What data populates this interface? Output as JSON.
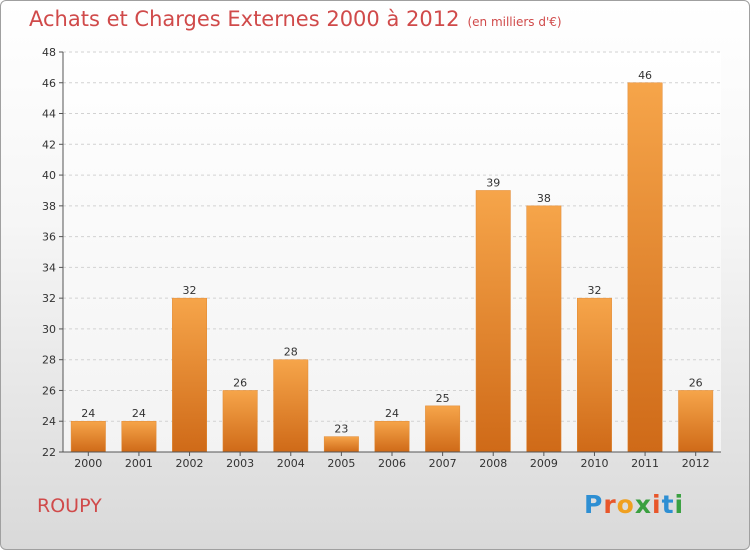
{
  "header": {
    "title": "Achats et Charges Externes 2000 à 2012",
    "unit": "(en milliers d'€)"
  },
  "footer": {
    "town": "ROUPY",
    "logo": "Proxiti",
    "logo_colors": [
      "#2e8fd3",
      "#e8562a",
      "#f0a020",
      "#3aa040",
      "#e8562a",
      "#2e8fd3",
      "#3aa040"
    ]
  },
  "chart_data": {
    "type": "bar",
    "categories": [
      "2000",
      "2001",
      "2002",
      "2003",
      "2004",
      "2005",
      "2006",
      "2007",
      "2008",
      "2009",
      "2010",
      "2011",
      "2012"
    ],
    "values": [
      24,
      24,
      32,
      26,
      28,
      23,
      24,
      25,
      39,
      38,
      32,
      46,
      26
    ],
    "ylim": [
      22,
      48
    ],
    "yticks": [
      22,
      24,
      26,
      28,
      30,
      32,
      34,
      36,
      38,
      40,
      42,
      44,
      46,
      48
    ],
    "grid": true,
    "bar_color_top": "#f6a54a",
    "bar_color_bottom": "#cf6a18"
  }
}
